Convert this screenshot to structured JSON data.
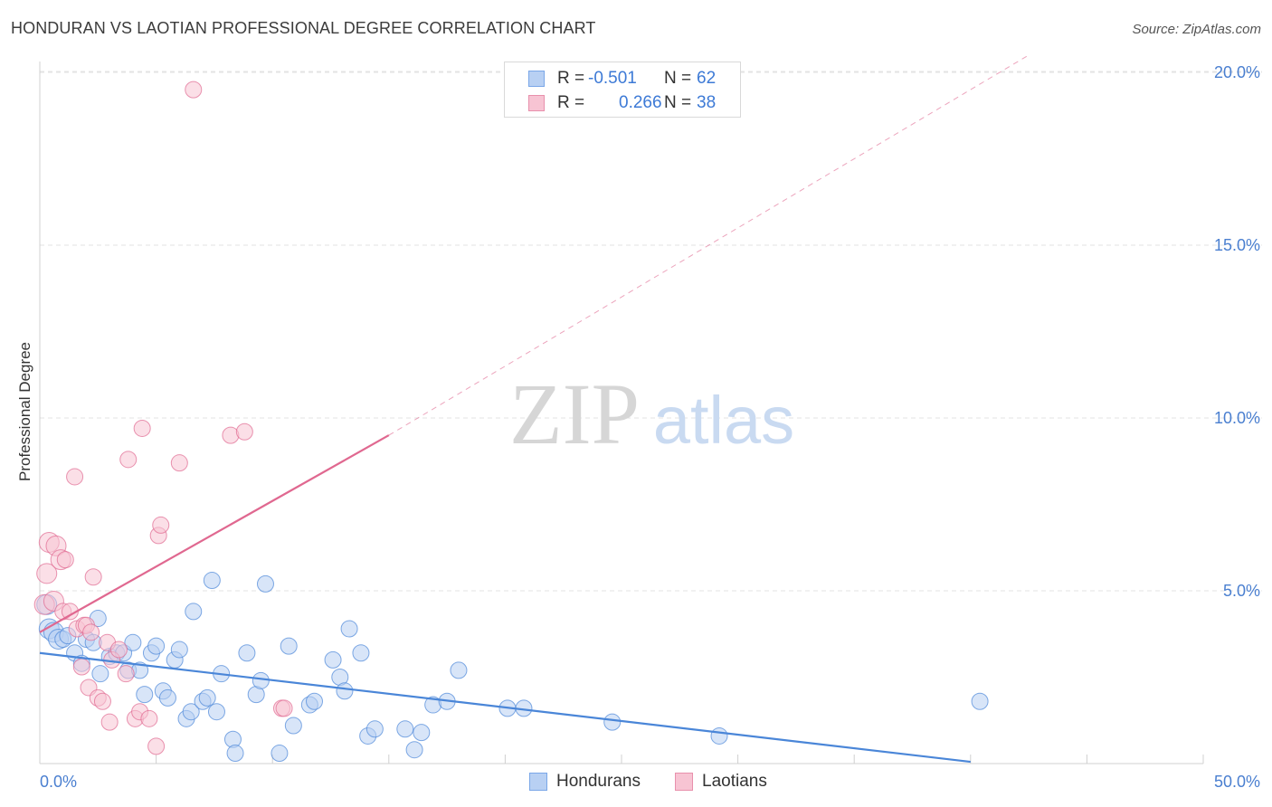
{
  "title": "HONDURAN VS LAOTIAN PROFESSIONAL DEGREE CORRELATION CHART",
  "source": "Source: ZipAtlas.com",
  "watermark": {
    "zip": "ZIP",
    "atlas": "atlas"
  },
  "legend": [
    {
      "r_label": "R =",
      "r_value": "-0.501",
      "n_label": "N =",
      "n_value": "62",
      "color": "#7aa7e8",
      "fill": "#b8d0f3"
    },
    {
      "r_label": "R =",
      "r_value": "0.266",
      "n_label": "N =",
      "n_value": "38",
      "color": "#e890ac",
      "fill": "#f7c4d3"
    }
  ],
  "chart_data": {
    "type": "scatter",
    "title": "HONDURAN VS LAOTIAN PROFESSIONAL DEGREE CORRELATION CHART",
    "xlabel": "",
    "ylabel": "Professional Degree",
    "xlim": [
      0,
      50
    ],
    "ylim": [
      0,
      20.5
    ],
    "x_tick_labels": [
      "0.0%",
      "50.0%"
    ],
    "y_ticks": [
      5,
      10,
      15,
      20
    ],
    "y_tick_labels": [
      "5.0%",
      "10.0%",
      "15.0%",
      "20.0%"
    ],
    "grid": true,
    "series": [
      {
        "name": "Hondurans",
        "color": "#4a86d8",
        "fill": "#b8d0f3",
        "points": [
          [
            0.3,
            4.6
          ],
          [
            0.4,
            3.9
          ],
          [
            0.6,
            3.8
          ],
          [
            0.8,
            3.6
          ],
          [
            1.0,
            3.6
          ],
          [
            1.2,
            3.7
          ],
          [
            1.5,
            3.2
          ],
          [
            1.8,
            2.9
          ],
          [
            2.0,
            3.6
          ],
          [
            2.3,
            3.5
          ],
          [
            2.5,
            4.2
          ],
          [
            2.6,
            2.6
          ],
          [
            3.0,
            3.1
          ],
          [
            3.3,
            3.2
          ],
          [
            3.6,
            3.2
          ],
          [
            3.8,
            2.7
          ],
          [
            4.0,
            3.5
          ],
          [
            4.3,
            2.7
          ],
          [
            4.5,
            2.0
          ],
          [
            4.8,
            3.2
          ],
          [
            5.0,
            3.4
          ],
          [
            5.3,
            2.1
          ],
          [
            5.5,
            1.9
          ],
          [
            5.8,
            3.0
          ],
          [
            6.0,
            3.3
          ],
          [
            6.3,
            1.3
          ],
          [
            6.5,
            1.5
          ],
          [
            6.6,
            4.4
          ],
          [
            7.0,
            1.8
          ],
          [
            7.2,
            1.9
          ],
          [
            7.4,
            5.3
          ],
          [
            7.6,
            1.5
          ],
          [
            7.8,
            2.6
          ],
          [
            8.3,
            0.7
          ],
          [
            8.4,
            0.3
          ],
          [
            8.9,
            3.2
          ],
          [
            9.3,
            2.0
          ],
          [
            9.5,
            2.4
          ],
          [
            9.7,
            5.2
          ],
          [
            10.3,
            0.3
          ],
          [
            10.7,
            3.4
          ],
          [
            10.9,
            1.1
          ],
          [
            11.6,
            1.7
          ],
          [
            11.8,
            1.8
          ],
          [
            12.6,
            3.0
          ],
          [
            12.9,
            2.5
          ],
          [
            13.1,
            2.1
          ],
          [
            13.3,
            3.9
          ],
          [
            13.8,
            3.2
          ],
          [
            14.1,
            0.8
          ],
          [
            14.4,
            1.0
          ],
          [
            15.7,
            1.0
          ],
          [
            16.1,
            0.4
          ],
          [
            16.4,
            0.9
          ],
          [
            16.9,
            1.7
          ],
          [
            17.5,
            1.8
          ],
          [
            18.0,
            2.7
          ],
          [
            20.1,
            1.6
          ],
          [
            20.8,
            1.6
          ],
          [
            24.6,
            1.2
          ],
          [
            29.2,
            0.8
          ],
          [
            40.4,
            1.8
          ]
        ],
        "trend": {
          "x0": 0,
          "y0": 3.2,
          "x1": 40.0,
          "y1": 0.05,
          "dashed_to": null
        }
      },
      {
        "name": "Laotians",
        "color": "#e06890",
        "fill": "#f7c4d3",
        "points": [
          [
            0.2,
            4.6
          ],
          [
            0.3,
            5.5
          ],
          [
            0.4,
            6.4
          ],
          [
            0.6,
            4.7
          ],
          [
            0.7,
            6.3
          ],
          [
            0.9,
            5.9
          ],
          [
            1.0,
            4.4
          ],
          [
            1.1,
            5.9
          ],
          [
            1.3,
            4.4
          ],
          [
            1.5,
            8.3
          ],
          [
            1.6,
            3.9
          ],
          [
            1.8,
            2.8
          ],
          [
            1.9,
            4.0
          ],
          [
            2.0,
            4.0
          ],
          [
            2.1,
            2.2
          ],
          [
            2.2,
            3.8
          ],
          [
            2.3,
            5.4
          ],
          [
            2.5,
            1.9
          ],
          [
            2.7,
            1.8
          ],
          [
            2.9,
            3.5
          ],
          [
            3.0,
            1.2
          ],
          [
            3.1,
            3.0
          ],
          [
            3.4,
            3.3
          ],
          [
            3.7,
            2.6
          ],
          [
            3.8,
            8.8
          ],
          [
            4.1,
            1.3
          ],
          [
            4.3,
            1.5
          ],
          [
            4.4,
            9.7
          ],
          [
            4.7,
            1.3
          ],
          [
            5.0,
            0.5
          ],
          [
            5.1,
            6.6
          ],
          [
            5.2,
            6.9
          ],
          [
            6.0,
            8.7
          ],
          [
            6.6,
            19.5
          ],
          [
            8.2,
            9.5
          ],
          [
            8.8,
            9.6
          ],
          [
            10.4,
            1.6
          ],
          [
            10.5,
            1.6
          ]
        ],
        "trend": {
          "x0": 0,
          "y0": 3.8,
          "x1": 15.0,
          "y1": 9.5,
          "dashed_to": [
            42.5,
            20.5
          ]
        }
      }
    ]
  }
}
